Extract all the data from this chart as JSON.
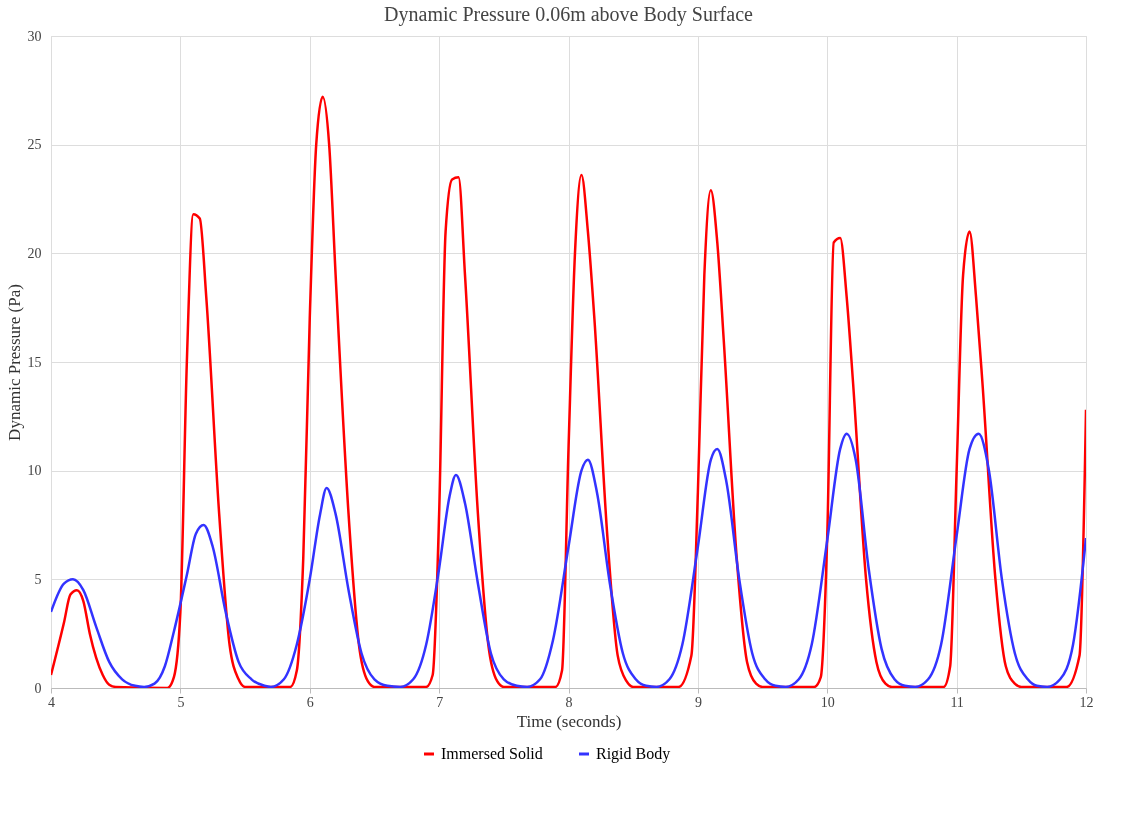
{
  "chart_data": {
    "type": "line",
    "title": "Dynamic Pressure 0.06m above Body Surface",
    "xlabel": "Time (seconds)",
    "ylabel": "Dynamic Pressure (Pa)",
    "xlim": [
      4,
      12
    ],
    "xticks": [
      4,
      5,
      6,
      7,
      8,
      9,
      10,
      11,
      12
    ],
    "ylim": [
      0,
      30
    ],
    "yticks": [
      0,
      5,
      10,
      15,
      20,
      25,
      30
    ],
    "grid": true,
    "legend": "bottom",
    "marker": "none",
    "line_style": "solid",
    "series": [
      {
        "name": "Immersed Solid",
        "color": "#ff0000",
        "x": [
          4.0,
          4.1,
          4.15,
          4.2,
          4.25,
          4.3,
          4.4,
          4.45,
          4.5,
          4.9,
          4.95,
          5.0,
          5.05,
          5.1,
          5.15,
          5.2,
          5.3,
          5.38,
          5.45,
          5.5,
          5.85,
          5.9,
          5.95,
          6.0,
          6.05,
          6.1,
          6.15,
          6.2,
          6.3,
          6.38,
          6.45,
          6.5,
          6.9,
          6.95,
          7.0,
          7.05,
          7.1,
          7.15,
          7.2,
          7.3,
          7.38,
          7.45,
          7.5,
          7.9,
          7.95,
          8.0,
          8.05,
          8.1,
          8.15,
          8.2,
          8.3,
          8.38,
          8.45,
          8.5,
          8.85,
          8.95,
          9.0,
          9.05,
          9.1,
          9.15,
          9.2,
          9.3,
          9.38,
          9.45,
          9.5,
          9.9,
          9.95,
          10.0,
          10.05,
          10.1,
          10.15,
          10.2,
          10.3,
          10.38,
          10.45,
          10.5,
          10.9,
          10.95,
          11.0,
          11.05,
          11.1,
          11.15,
          11.2,
          11.3,
          11.38,
          11.45,
          11.5,
          11.85,
          11.95,
          12.0
        ],
        "values": [
          0.6,
          3.0,
          4.3,
          4.5,
          4.0,
          2.5,
          0.6,
          0.15,
          0.05,
          0,
          0.5,
          3.5,
          15,
          21.8,
          21.6,
          18,
          8,
          2,
          0.4,
          0.05,
          0.05,
          0.8,
          6,
          17,
          25,
          27.2,
          25,
          19,
          8,
          2,
          0.3,
          0.05,
          0.05,
          0.6,
          8,
          21,
          23.4,
          23.5,
          19,
          8,
          2,
          0.3,
          0.05,
          0.05,
          0.8,
          11,
          20,
          23.6,
          21,
          17,
          7,
          1.5,
          0.3,
          0.05,
          0.05,
          1.5,
          9,
          19,
          22.9,
          20.5,
          16,
          6,
          1.2,
          0.2,
          0.05,
          0.05,
          0.5,
          7,
          20.5,
          20.7,
          18,
          14,
          5,
          1.2,
          0.2,
          0.05,
          0.05,
          1,
          10,
          19,
          21,
          18,
          14,
          5,
          1,
          0.2,
          0.05,
          0.05,
          1.5,
          12.8
        ]
      },
      {
        "name": "Rigid Body",
        "color": "#3333ff",
        "x": [
          4.0,
          4.1,
          4.17,
          4.25,
          4.35,
          4.45,
          4.55,
          4.65,
          4.72,
          4.8,
          4.88,
          4.95,
          5.05,
          5.12,
          5.18,
          5.25,
          5.35,
          5.45,
          5.55,
          5.65,
          5.7,
          5.8,
          5.9,
          6.0,
          6.08,
          6.13,
          6.2,
          6.3,
          6.4,
          6.5,
          6.6,
          6.7,
          6.8,
          6.9,
          7.0,
          7.08,
          7.13,
          7.2,
          7.3,
          7.4,
          7.5,
          7.6,
          7.68,
          7.78,
          7.88,
          8.0,
          8.1,
          8.15,
          8.22,
          8.32,
          8.42,
          8.52,
          8.6,
          8.68,
          8.78,
          8.88,
          9.0,
          9.1,
          9.15,
          9.22,
          9.32,
          9.42,
          9.52,
          9.6,
          9.68,
          9.78,
          9.88,
          10.0,
          10.1,
          10.15,
          10.22,
          10.32,
          10.42,
          10.52,
          10.6,
          10.68,
          10.78,
          10.88,
          11.0,
          11.1,
          11.17,
          11.25,
          11.35,
          11.45,
          11.55,
          11.62,
          11.7,
          11.8,
          11.9,
          12.0
        ],
        "values": [
          3.5,
          4.8,
          5.0,
          4.5,
          2.8,
          1.2,
          0.4,
          0.1,
          0.05,
          0.2,
          1,
          2.6,
          5.2,
          7.1,
          7.5,
          6.5,
          3.5,
          1.2,
          0.4,
          0.1,
          0.05,
          0.4,
          2,
          5,
          8,
          9.2,
          8,
          4.5,
          1.6,
          0.4,
          0.1,
          0.05,
          0.4,
          2,
          5.5,
          8.8,
          9.8,
          8.5,
          4.8,
          1.6,
          0.4,
          0.1,
          0.05,
          0.4,
          2.2,
          6.5,
          10,
          10.5,
          9,
          4.8,
          1.6,
          0.4,
          0.1,
          0.05,
          0.4,
          2,
          6.5,
          10.5,
          11,
          9.5,
          5,
          1.6,
          0.4,
          0.1,
          0.05,
          0.4,
          2,
          6.8,
          11,
          11.7,
          10.5,
          5.5,
          1.8,
          0.4,
          0.1,
          0.05,
          0.4,
          2,
          7,
          11,
          11.7,
          10,
          5,
          1.6,
          0.4,
          0.1,
          0.05,
          0.4,
          2,
          6.9
        ]
      }
    ]
  }
}
